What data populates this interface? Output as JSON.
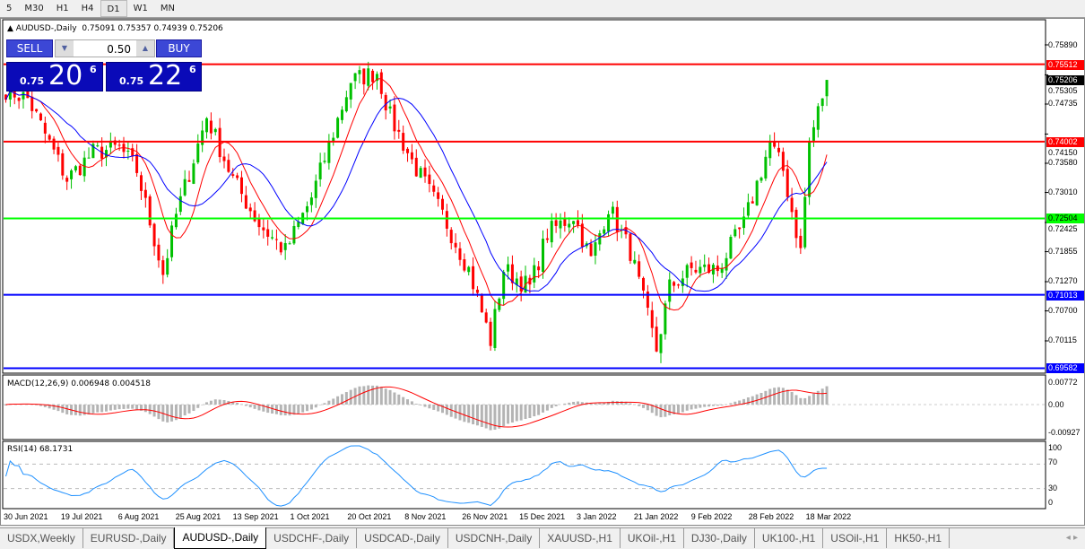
{
  "toolbar": {
    "timeframes": [
      "5",
      "M30",
      "H1",
      "H4",
      "D1",
      "W1",
      "MN"
    ],
    "active": "D1"
  },
  "chart": {
    "title": "AUDUSD-,Daily",
    "ohlc": "0.75091 0.75357 0.74939 0.75206",
    "trade_panel": {
      "sell": "SELL",
      "buy": "BUY",
      "lot": "0.50",
      "sell_prefix": "0.75",
      "sell_big": "20",
      "sell_sup": "6",
      "buy_prefix": "0.75",
      "buy_big": "22",
      "buy_sup": "6"
    },
    "price_axis": [
      "0.75890",
      "0.75305",
      "0.74735",
      "0.74150",
      "0.73580",
      "0.73010",
      "0.72425",
      "0.71855",
      "0.71270",
      "0.70700",
      "0.70115"
    ],
    "price_range": [
      0.6945,
      0.7635
    ],
    "levels": [
      {
        "price": "0.75512",
        "color": "#ff0000"
      },
      {
        "price": "0.74002",
        "color": "#ff0000"
      },
      {
        "price": "0.72504",
        "color": "#00ff00"
      },
      {
        "price": "0.71013",
        "color": "#0000ff"
      },
      {
        "price": "0.69582",
        "color": "#0000ff"
      }
    ],
    "current_price": "0.75206",
    "colors": {
      "bull": "#00c000",
      "bear": "#ff0000",
      "ma_fast": "#ff0000",
      "ma_slow": "#0000ff"
    },
    "price_keypoints": [
      [
        0,
        0.7502
      ],
      [
        5,
        0.7484
      ],
      [
        14,
        0.7327
      ],
      [
        20,
        0.7379
      ],
      [
        26,
        0.7388
      ],
      [
        30,
        0.7344
      ],
      [
        36,
        0.7143
      ],
      [
        39,
        0.7257
      ],
      [
        46,
        0.7449
      ],
      [
        52,
        0.7327
      ],
      [
        58,
        0.7239
      ],
      [
        64,
        0.7186
      ],
      [
        70,
        0.7291
      ],
      [
        79,
        0.7519
      ],
      [
        85,
        0.7536
      ],
      [
        88,
        0.7449
      ],
      [
        93,
        0.7362
      ],
      [
        100,
        0.7257
      ],
      [
        106,
        0.7151
      ],
      [
        111,
        0.7012
      ],
      [
        114,
        0.7151
      ],
      [
        120,
        0.7116
      ],
      [
        124,
        0.7221
      ],
      [
        130,
        0.7257
      ],
      [
        134,
        0.7169
      ],
      [
        138,
        0.7274
      ],
      [
        143,
        0.7186
      ],
      [
        149,
        0.6994
      ],
      [
        152,
        0.7116
      ],
      [
        157,
        0.7151
      ],
      [
        163,
        0.7151
      ],
      [
        169,
        0.7239
      ],
      [
        175,
        0.7397
      ],
      [
        178,
        0.7344
      ],
      [
        182,
        0.7186
      ],
      [
        184,
        0.7397
      ],
      [
        188,
        0.7521
      ]
    ]
  },
  "macd": {
    "title": "MACD(12,26,9) 0.006948 0.004518",
    "axis": [
      "0.00772",
      "0.00",
      "-0.00927"
    ]
  },
  "rsi": {
    "title": "RSI(14) 68.1731",
    "axis": [
      "100",
      "70",
      "30",
      "0"
    ]
  },
  "time_axis": [
    "30 Jun 2021",
    "19 Jul 2021",
    "6 Aug 2021",
    "25 Aug 2021",
    "13 Sep 2021",
    "1 Oct 2021",
    "20 Oct 2021",
    "8 Nov 2021",
    "26 Nov 2021",
    "15 Dec 2021",
    "3 Jan 2022",
    "21 Jan 2022",
    "9 Feb 2022",
    "28 Feb 2022",
    "18 Mar 2022"
  ],
  "tabs": [
    "USDX,Weekly",
    "EURUSD-,Daily",
    "AUDUSD-,Daily",
    "USDCHF-,Daily",
    "USDCAD-,Daily",
    "USDCNH-,Daily",
    "XAUUSD-,H1",
    "UKOil-,H1",
    "DJ30-,Daily",
    "UK100-,H1",
    "USOil-,H1",
    "HK50-,H1"
  ],
  "active_tab": "AUDUSD-,Daily"
}
